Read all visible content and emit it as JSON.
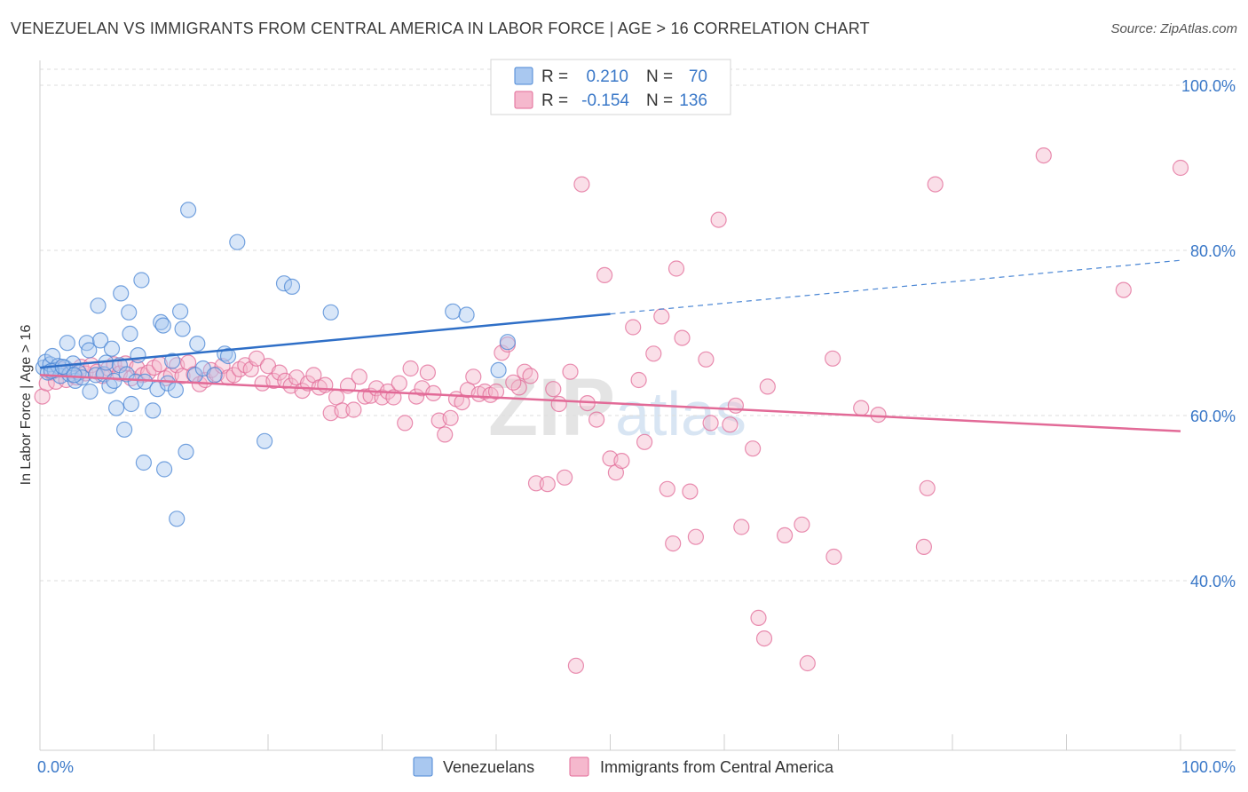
{
  "title": "VENEZUELAN VS IMMIGRANTS FROM CENTRAL AMERICA IN LABOR FORCE | AGE > 16 CORRELATION CHART",
  "source": "Source: ZipAtlas.com",
  "watermark": "ZIPatlas",
  "colors": {
    "blue": "#4a86d4",
    "blue_fill": "#a9c8f0",
    "pink": "#e26a97",
    "pink_fill": "#f5b8cd",
    "accent_text": "#3a78c8"
  },
  "legend": {
    "rows": [
      {
        "r_label": "R =",
        "r_value": "0.210",
        "n_label": "N =",
        "n_value": "70"
      },
      {
        "r_label": "R =",
        "r_value": "-0.154",
        "n_label": "N =",
        "n_value": "136"
      }
    ]
  },
  "chart_data": {
    "type": "scatter",
    "xlabel": "",
    "ylabel": "In Labor Force | Age > 16",
    "xlim": [
      0,
      100
    ],
    "ylim": [
      20,
      100
    ],
    "x_tick_labels": [
      "0.0%",
      "100.0%"
    ],
    "y_ticks": [
      {
        "value": 100,
        "label": "100.0%"
      },
      {
        "value": 80,
        "label": "80.0%"
      },
      {
        "value": 60,
        "label": "60.0%"
      },
      {
        "value": 40,
        "label": "40.0%"
      }
    ],
    "series": [
      {
        "name": "Venezuelans",
        "color": "blue",
        "trend": {
          "x0": 0,
          "y0": 65.8,
          "x1": 50,
          "y1": 72.3,
          "dashed_to_x": 100,
          "dashed_to_y": 78.8
        },
        "points": [
          [
            0.3,
            65.8
          ],
          [
            0.5,
            66.5
          ],
          [
            0.7,
            65.2
          ],
          [
            0.9,
            66.2
          ],
          [
            1.1,
            67.2
          ],
          [
            1.3,
            65.5
          ],
          [
            1.6,
            66.0
          ],
          [
            1.8,
            64.8
          ],
          [
            2.2,
            65.8
          ],
          [
            2.4,
            68.8
          ],
          [
            2.6,
            65.0
          ],
          [
            2.9,
            66.3
          ],
          [
            3.1,
            64.2
          ],
          [
            3.4,
            65.2
          ],
          [
            3.7,
            64.6
          ],
          [
            4.1,
            68.8
          ],
          [
            4.3,
            67.9
          ],
          [
            4.4,
            62.9
          ],
          [
            4.9,
            64.9
          ],
          [
            5.1,
            73.3
          ],
          [
            5.3,
            69.1
          ],
          [
            5.6,
            65.0
          ],
          [
            5.8,
            66.4
          ],
          [
            6.1,
            63.6
          ],
          [
            6.3,
            68.1
          ],
          [
            6.5,
            64.2
          ],
          [
            6.7,
            60.9
          ],
          [
            7.0,
            66.1
          ],
          [
            7.1,
            74.8
          ],
          [
            7.4,
            58.3
          ],
          [
            7.6,
            65.0
          ],
          [
            7.9,
            69.9
          ],
          [
            7.8,
            72.5
          ],
          [
            8.0,
            61.4
          ],
          [
            8.4,
            64.1
          ],
          [
            8.6,
            67.3
          ],
          [
            8.9,
            76.4
          ],
          [
            9.1,
            54.3
          ],
          [
            9.2,
            64.1
          ],
          [
            9.9,
            60.6
          ],
          [
            10.3,
            63.2
          ],
          [
            10.6,
            71.3
          ],
          [
            10.8,
            70.9
          ],
          [
            10.9,
            53.5
          ],
          [
            11.2,
            63.9
          ],
          [
            11.6,
            66.6
          ],
          [
            11.9,
            63.1
          ],
          [
            12.0,
            47.5
          ],
          [
            12.3,
            72.6
          ],
          [
            12.5,
            70.5
          ],
          [
            12.8,
            55.6
          ],
          [
            13.0,
            84.9
          ],
          [
            13.6,
            64.9
          ],
          [
            13.8,
            68.7
          ],
          [
            14.3,
            65.7
          ],
          [
            15.3,
            64.9
          ],
          [
            16.2,
            67.5
          ],
          [
            16.5,
            67.2
          ],
          [
            17.3,
            81.0
          ],
          [
            19.7,
            56.9
          ],
          [
            21.4,
            76.0
          ],
          [
            22.1,
            75.6
          ],
          [
            25.5,
            72.5
          ],
          [
            36.2,
            72.6
          ],
          [
            37.4,
            72.2
          ],
          [
            40.2,
            65.5
          ],
          [
            41.0,
            68.9
          ],
          [
            1.0,
            65.4
          ],
          [
            2.0,
            65.9
          ],
          [
            3.0,
            64.9
          ]
        ]
      },
      {
        "name": "Immigrants from Central America",
        "color": "pink",
        "trend": {
          "x0": 0,
          "y0": 64.9,
          "x1": 100,
          "y1": 58.1
        },
        "points": [
          [
            0.2,
            62.3
          ],
          [
            0.6,
            63.9
          ],
          [
            1.0,
            65.2
          ],
          [
            1.4,
            64.1
          ],
          [
            1.8,
            65.6
          ],
          [
            2.3,
            64.3
          ],
          [
            2.7,
            65.4
          ],
          [
            3.2,
            64.6
          ],
          [
            3.6,
            65.9
          ],
          [
            4.0,
            65.1
          ],
          [
            4.5,
            66.1
          ],
          [
            5.0,
            65.3
          ],
          [
            5.5,
            64.8
          ],
          [
            6.0,
            65.7
          ],
          [
            6.5,
            66.2
          ],
          [
            7.0,
            65.1
          ],
          [
            7.5,
            66.3
          ],
          [
            8.0,
            64.5
          ],
          [
            8.5,
            65.8
          ],
          [
            9.0,
            64.9
          ],
          [
            9.5,
            65.2
          ],
          [
            10.0,
            65.8
          ],
          [
            10.5,
            66.2
          ],
          [
            11.0,
            64.5
          ],
          [
            11.5,
            64.9
          ],
          [
            12.0,
            66.1
          ],
          [
            12.5,
            64.8
          ],
          [
            13.0,
            66.4
          ],
          [
            13.5,
            65.0
          ],
          [
            14.0,
            63.8
          ],
          [
            14.5,
            64.3
          ],
          [
            15.0,
            65.5
          ],
          [
            15.5,
            65.0
          ],
          [
            16.0,
            66.0
          ],
          [
            16.5,
            64.6
          ],
          [
            17.0,
            64.9
          ],
          [
            17.5,
            65.6
          ],
          [
            18.0,
            66.1
          ],
          [
            18.5,
            65.6
          ],
          [
            19.0,
            66.9
          ],
          [
            19.5,
            63.9
          ],
          [
            20.0,
            66.0
          ],
          [
            20.5,
            64.2
          ],
          [
            21.0,
            65.2
          ],
          [
            21.5,
            64.2
          ],
          [
            22.0,
            63.6
          ],
          [
            22.5,
            64.6
          ],
          [
            23.0,
            63.0
          ],
          [
            23.5,
            63.9
          ],
          [
            24.0,
            64.9
          ],
          [
            24.5,
            63.4
          ],
          [
            25.0,
            63.7
          ],
          [
            25.5,
            60.3
          ],
          [
            26.0,
            62.2
          ],
          [
            26.5,
            60.6
          ],
          [
            27.0,
            63.6
          ],
          [
            27.5,
            60.7
          ],
          [
            28.0,
            64.7
          ],
          [
            28.5,
            62.3
          ],
          [
            29.0,
            62.4
          ],
          [
            29.5,
            63.3
          ],
          [
            30.0,
            62.2
          ],
          [
            30.5,
            62.9
          ],
          [
            31.0,
            62.2
          ],
          [
            31.5,
            63.9
          ],
          [
            32.0,
            59.1
          ],
          [
            32.5,
            65.7
          ],
          [
            33.0,
            62.3
          ],
          [
            33.5,
            63.3
          ],
          [
            34.0,
            65.2
          ],
          [
            34.5,
            62.7
          ],
          [
            35.0,
            59.4
          ],
          [
            35.5,
            57.7
          ],
          [
            36.0,
            59.7
          ],
          [
            36.5,
            62.0
          ],
          [
            37.0,
            61.6
          ],
          [
            37.5,
            63.1
          ],
          [
            38.0,
            64.7
          ],
          [
            38.5,
            62.6
          ],
          [
            39.0,
            62.9
          ],
          [
            39.5,
            62.5
          ],
          [
            40.0,
            62.9
          ],
          [
            40.5,
            67.6
          ],
          [
            41.0,
            68.6
          ],
          [
            42.0,
            63.4
          ],
          [
            42.5,
            65.3
          ],
          [
            43.0,
            64.8
          ],
          [
            43.5,
            51.8
          ],
          [
            44.5,
            51.7
          ],
          [
            45.0,
            63.2
          ],
          [
            45.5,
            61.4
          ],
          [
            46.0,
            52.5
          ],
          [
            46.5,
            65.3
          ],
          [
            47.0,
            29.7
          ],
          [
            47.5,
            88.0
          ],
          [
            48.0,
            61.5
          ],
          [
            48.8,
            59.5
          ],
          [
            49.5,
            77.0
          ],
          [
            50.0,
            54.8
          ],
          [
            50.5,
            53.1
          ],
          [
            51.0,
            54.5
          ],
          [
            52.0,
            70.7
          ],
          [
            52.5,
            64.3
          ],
          [
            53.0,
            56.8
          ],
          [
            53.8,
            67.5
          ],
          [
            54.5,
            72.0
          ],
          [
            55.0,
            51.1
          ],
          [
            55.5,
            44.5
          ],
          [
            55.8,
            77.8
          ],
          [
            56.3,
            69.4
          ],
          [
            57.0,
            50.8
          ],
          [
            57.5,
            45.3
          ],
          [
            58.4,
            66.8
          ],
          [
            58.8,
            59.1
          ],
          [
            59.5,
            83.7
          ],
          [
            60.5,
            58.9
          ],
          [
            61.0,
            61.2
          ],
          [
            61.5,
            46.5
          ],
          [
            62.5,
            56.0
          ],
          [
            63.0,
            35.5
          ],
          [
            63.5,
            33.0
          ],
          [
            63.8,
            63.5
          ],
          [
            65.3,
            45.5
          ],
          [
            66.8,
            46.8
          ],
          [
            67.3,
            30.0
          ],
          [
            69.6,
            42.9
          ],
          [
            69.5,
            66.9
          ],
          [
            72.0,
            60.9
          ],
          [
            73.5,
            60.1
          ],
          [
            77.5,
            44.1
          ],
          [
            77.8,
            51.2
          ],
          [
            78.5,
            88.0
          ],
          [
            88.0,
            91.5
          ],
          [
            95.0,
            75.2
          ],
          [
            100.0,
            90.0
          ],
          [
            41.5,
            64.0
          ]
        ]
      }
    ]
  },
  "bottom_legend": {
    "items": [
      {
        "label": "Venezuelans"
      },
      {
        "label": "Immigrants from Central America"
      }
    ]
  }
}
